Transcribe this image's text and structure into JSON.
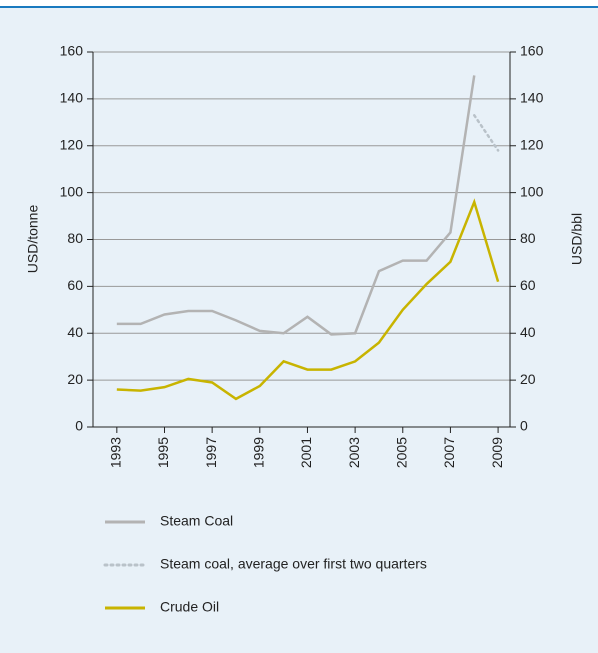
{
  "chart_data": {
    "type": "line",
    "x": [
      1993,
      1994,
      1995,
      1996,
      1997,
      1998,
      1999,
      2000,
      2001,
      2002,
      2003,
      2004,
      2005,
      2006,
      2007,
      2008,
      2009
    ],
    "series": [
      {
        "name": "Steam Coal",
        "color": "#b3b3b3",
        "style": "solid",
        "axis": "y",
        "values": [
          44,
          44,
          48,
          49.5,
          49.5,
          45.5,
          41,
          40,
          47,
          39.5,
          40,
          66.5,
          71,
          71,
          83,
          150,
          null
        ]
      },
      {
        "name": "Steam coal, average over first two quarters",
        "color": "#b9c2c9",
        "style": "dotted",
        "axis": "y",
        "values": [
          null,
          null,
          null,
          null,
          null,
          null,
          null,
          null,
          null,
          null,
          null,
          null,
          null,
          null,
          null,
          133,
          118
        ]
      },
      {
        "name": "Crude Oil",
        "color": "#c8b400",
        "style": "solid",
        "axis": "y2",
        "values": [
          16,
          15.5,
          17,
          20.5,
          19,
          12,
          17.5,
          28,
          24.5,
          24.5,
          28,
          36,
          50,
          61,
          70.5,
          96,
          62
        ]
      }
    ],
    "xlim": [
      1992,
      2009.5
    ],
    "xticks": [
      1993,
      1995,
      1997,
      1999,
      2001,
      2003,
      2005,
      2007,
      2009
    ],
    "ylim": [
      0,
      160
    ],
    "yticks": [
      0,
      20,
      40,
      60,
      80,
      100,
      120,
      140,
      160
    ],
    "y2lim": [
      0,
      160
    ],
    "y2ticks": [
      0,
      20,
      40,
      60,
      80,
      100,
      120,
      140,
      160
    ],
    "ylabel": "USD/tonne",
    "y2label": "USD/bbl",
    "grid": true
  }
}
